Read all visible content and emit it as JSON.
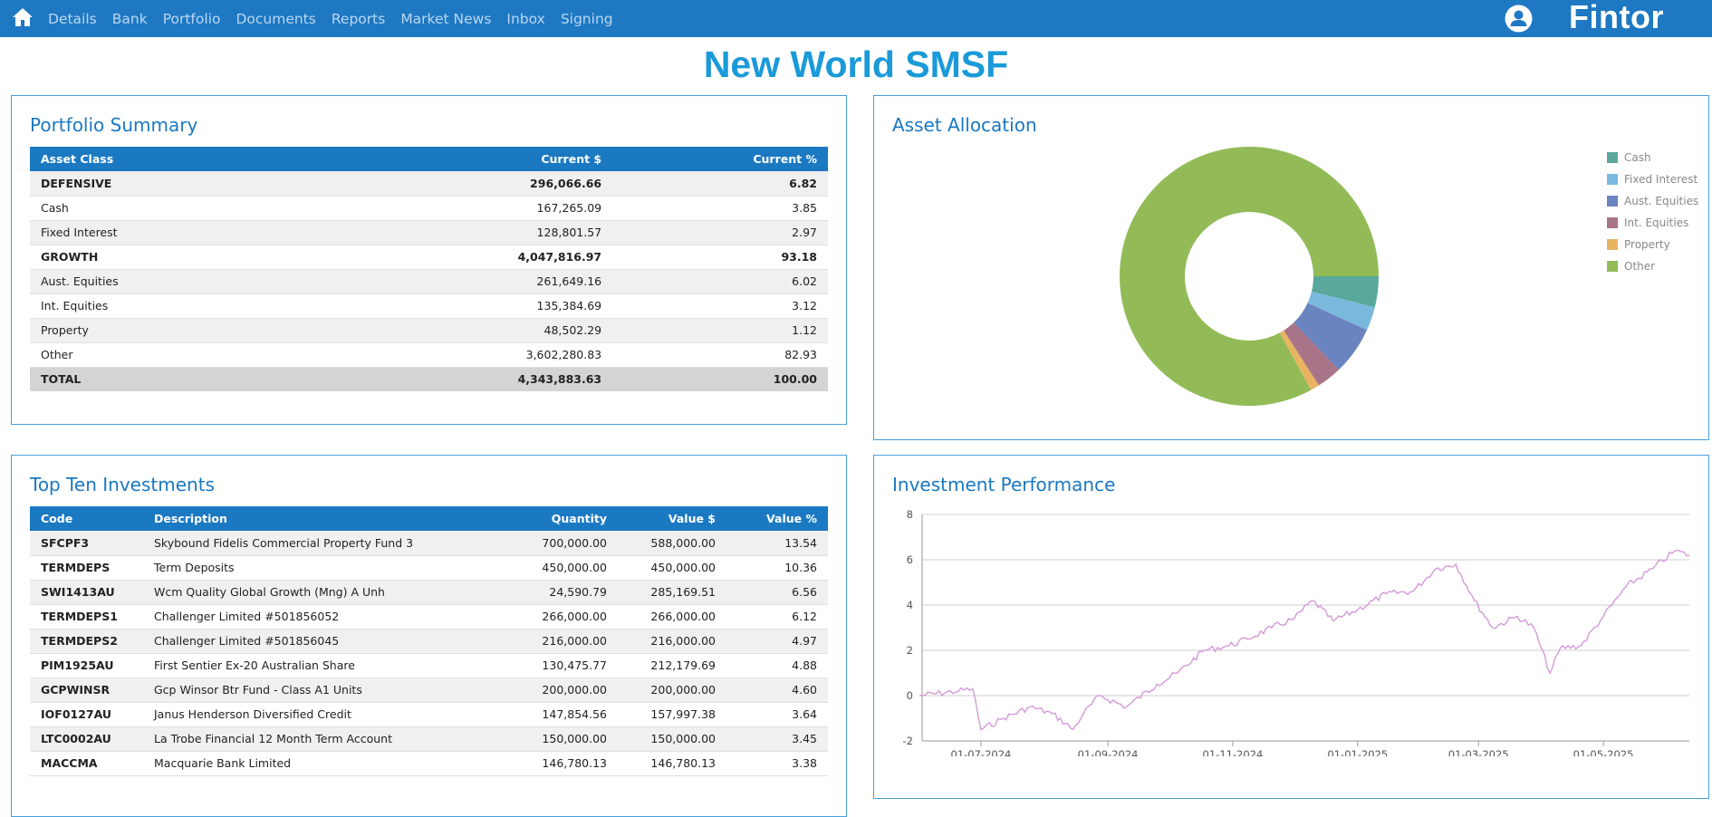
{
  "nav": {
    "items": [
      "Details",
      "Bank",
      "Portfolio",
      "Documents",
      "Reports",
      "Market News",
      "Inbox",
      "Signing"
    ],
    "brand": "Fintor"
  },
  "page": {
    "title": "New World SMSF"
  },
  "portfolio_summary": {
    "title": "Portfolio Summary",
    "headers": [
      "Asset Class",
      "Current $",
      "Current %"
    ],
    "rows": [
      {
        "name": "DEFENSIVE",
        "value": "296,066.66",
        "pct": "6.82",
        "bold": true
      },
      {
        "name": "Cash",
        "value": "167,265.09",
        "pct": "3.85",
        "bold": false
      },
      {
        "name": "Fixed Interest",
        "value": "128,801.57",
        "pct": "2.97",
        "bold": false
      },
      {
        "name": "GROWTH",
        "value": "4,047,816.97",
        "pct": "93.18",
        "bold": true
      },
      {
        "name": "Aust. Equities",
        "value": "261,649.16",
        "pct": "6.02",
        "bold": false
      },
      {
        "name": "Int. Equities",
        "value": "135,384.69",
        "pct": "3.12",
        "bold": false
      },
      {
        "name": "Property",
        "value": "48,502.29",
        "pct": "1.12",
        "bold": false
      },
      {
        "name": "Other",
        "value": "3,602,280.83",
        "pct": "82.93",
        "bold": false
      }
    ],
    "total": {
      "name": "TOTAL",
      "value": "4,343,883.63",
      "pct": "100.00"
    }
  },
  "asset_allocation": {
    "title": "Asset Allocation",
    "legend": [
      {
        "label": "Cash",
        "color": "#5aa89c"
      },
      {
        "label": "Fixed Interest",
        "color": "#7ab8de"
      },
      {
        "label": "Aust. Equities",
        "color": "#6a84c0"
      },
      {
        "label": "Int. Equities",
        "color": "#a87488"
      },
      {
        "label": "Property",
        "color": "#e8b462"
      },
      {
        "label": "Other",
        "color": "#92bb58"
      }
    ]
  },
  "top_ten": {
    "title": "Top Ten Investments",
    "headers": [
      "Code",
      "Description",
      "Quantity",
      "Value $",
      "Value %"
    ],
    "rows": [
      [
        "SFCPF3",
        "Skybound Fidelis Commercial Property Fund 3",
        "700,000.00",
        "588,000.00",
        "13.54"
      ],
      [
        "TERMDEPS",
        "Term Deposits",
        "450,000.00",
        "450,000.00",
        "10.36"
      ],
      [
        "SWI1413AU",
        "Wcm Quality Global Growth (Mng) A Unh",
        "24,590.79",
        "285,169.51",
        "6.56"
      ],
      [
        "TERMDEPS1",
        "Challenger Limited #501856052",
        "266,000.00",
        "266,000.00",
        "6.12"
      ],
      [
        "TERMDEPS2",
        "Challenger Limited #501856045",
        "216,000.00",
        "216,000.00",
        "4.97"
      ],
      [
        "PIM1925AU",
        "First Sentier Ex-20 Australian Share",
        "130,475.77",
        "212,179.69",
        "4.88"
      ],
      [
        "GCPWINSR",
        "Gcp Winsor Btr Fund - Class A1 Units",
        "200,000.00",
        "200,000.00",
        "4.60"
      ],
      [
        "IOF0127AU",
        "Janus Henderson Diversified Credit",
        "147,854.56",
        "157,997.38",
        "3.64"
      ],
      [
        "LTC0002AU",
        "La Trobe Financial 12 Month Term Account",
        "150,000.00",
        "150,000.00",
        "3.45"
      ],
      [
        "MACCMA",
        "Macquarie Bank Limited",
        "146,780.13",
        "146,780.13",
        "3.38"
      ]
    ]
  },
  "performance": {
    "title": "Investment Performance"
  },
  "chart_data": [
    {
      "type": "pie",
      "variant": "donut",
      "categories": [
        "Cash",
        "Fixed Interest",
        "Aust. Equities",
        "Int. Equities",
        "Property",
        "Other"
      ],
      "values": [
        3.85,
        2.97,
        6.02,
        3.12,
        1.12,
        82.93
      ],
      "colors": [
        "#5aa89c",
        "#7ab8de",
        "#6a84c0",
        "#a87488",
        "#e8b462",
        "#92bb58"
      ],
      "legend_position": "top-right"
    },
    {
      "type": "line",
      "color": "#d49ad8",
      "ylim": [
        -2,
        8
      ],
      "yticks": [
        -2,
        0,
        2,
        4,
        6,
        8
      ],
      "xticks": [
        "01-07-2024",
        "01-09-2024",
        "01-11-2024",
        "01-01-2025",
        "01-03-2025",
        "01-05-2025"
      ],
      "grid": true,
      "x": [
        "2024-06-01",
        "2024-06-20",
        "2024-06-27",
        "2024-07-01",
        "2024-07-12",
        "2024-07-25",
        "2024-08-05",
        "2024-08-15",
        "2024-08-20",
        "2024-08-28",
        "2024-09-10",
        "2024-09-25",
        "2024-10-05",
        "2024-10-18",
        "2024-10-30",
        "2024-11-08",
        "2024-11-20",
        "2024-12-01",
        "2024-12-10",
        "2024-12-20",
        "2025-01-01",
        "2025-01-15",
        "2025-01-28",
        "2025-02-08",
        "2025-02-18",
        "2025-02-27",
        "2025-03-08",
        "2025-03-20",
        "2025-03-28",
        "2025-04-05",
        "2025-04-10",
        "2025-04-20",
        "2025-05-01",
        "2025-05-12",
        "2025-05-25",
        "2025-06-05",
        "2025-06-12"
      ],
      "y": [
        0.0,
        0.2,
        0.3,
        -1.5,
        -1.0,
        -0.5,
        -0.8,
        -1.5,
        -0.8,
        0.0,
        -0.5,
        0.5,
        1.0,
        2.0,
        2.2,
        2.5,
        3.0,
        3.4,
        4.2,
        3.3,
        3.8,
        4.5,
        4.6,
        5.6,
        5.8,
        4.2,
        3.0,
        3.5,
        3.0,
        1.0,
        2.1,
        2.2,
        3.5,
        4.8,
        5.6,
        6.4,
        6.2
      ],
      "series": [
        {
          "name": "",
          "values": [
            0.0,
            0.2,
            0.3,
            -1.5,
            -1.0,
            -0.5,
            -0.8,
            -1.5,
            -0.8,
            0.0,
            -0.5,
            0.5,
            1.0,
            2.0,
            2.2,
            2.5,
            3.0,
            3.4,
            4.2,
            3.3,
            3.8,
            4.5,
            4.6,
            5.6,
            5.8,
            4.2,
            3.0,
            3.5,
            3.0,
            1.0,
            2.1,
            2.2,
            3.5,
            4.8,
            5.6,
            6.4,
            6.2
          ]
        }
      ]
    }
  ]
}
